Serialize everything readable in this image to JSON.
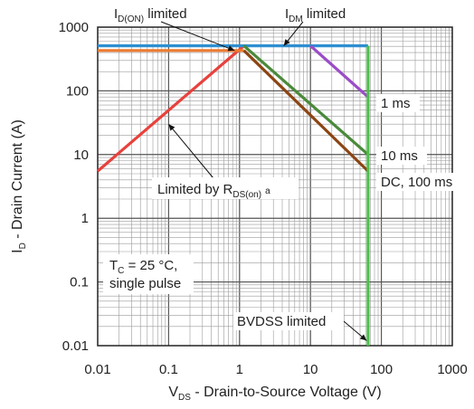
{
  "chart_data": {
    "type": "line",
    "title": "",
    "xlabel": {
      "main": "V",
      "sub": "DS",
      "rest": " - Drain-to-Source Voltage (V)"
    },
    "ylabel": {
      "main": "I",
      "sub": "D",
      "rest": " - Drain Current (A)"
    },
    "xscale": "log",
    "yscale": "log",
    "xlim": [
      0.01,
      1000
    ],
    "ylim": [
      0.01,
      1000
    ],
    "grid": true,
    "x_ticks": [
      "0.01",
      "0.1",
      "1",
      "10",
      "100",
      "1000"
    ],
    "y_ticks": [
      "0.01",
      "0.1",
      "1",
      "10",
      "100",
      "1000"
    ],
    "x_tick_values": [
      0.01,
      0.1,
      1,
      10,
      100,
      1000
    ],
    "y_tick_values": [
      0.01,
      0.1,
      1,
      10,
      100,
      1000
    ],
    "series": [
      {
        "key": "rds",
        "color": "#e8413c",
        "points": [
          [
            0.01,
            5.5
          ],
          [
            1.15,
            510
          ]
        ]
      },
      {
        "key": "id_on",
        "color": "#ee7b30",
        "points": [
          [
            0.01,
            430
          ],
          [
            1.15,
            430
          ]
        ]
      },
      {
        "key": "idm",
        "color": "#2e8fd0",
        "points": [
          [
            0.01,
            510
          ],
          [
            65,
            510
          ]
        ]
      },
      {
        "key": "1ms",
        "color": "#9b4cc7",
        "points": [
          [
            10,
            510
          ],
          [
            65,
            80
          ]
        ]
      },
      {
        "key": "10ms",
        "color": "#4a8a3a",
        "points": [
          [
            1.15,
            510
          ],
          [
            65,
            10
          ]
        ]
      },
      {
        "key": "dc",
        "color": "#8b4513",
        "points": [
          [
            1.15,
            430
          ],
          [
            65,
            5.5
          ]
        ]
      },
      {
        "key": "bvdss",
        "color": "#4bbf4b",
        "points": [
          [
            65,
            0.01
          ],
          [
            65,
            510
          ]
        ]
      }
    ],
    "annotations": {
      "id_on": {
        "main": "I",
        "sub": "D(ON)",
        "rest": " limited"
      },
      "idm": {
        "main": "I",
        "sub": "DM",
        "rest": " limited"
      },
      "one_ms": "1 ms",
      "ten_ms": "10 ms",
      "dc": "DC, 100 ms",
      "rds": {
        "main": "Limited by R",
        "sub": "DS(on)",
        "sup": "a"
      },
      "tc_line1": "T",
      "tc_sub": "C",
      "tc_rest": " = 25 °C,",
      "tc_line2": "single pulse",
      "bvdss": "BVDSS limited"
    }
  }
}
